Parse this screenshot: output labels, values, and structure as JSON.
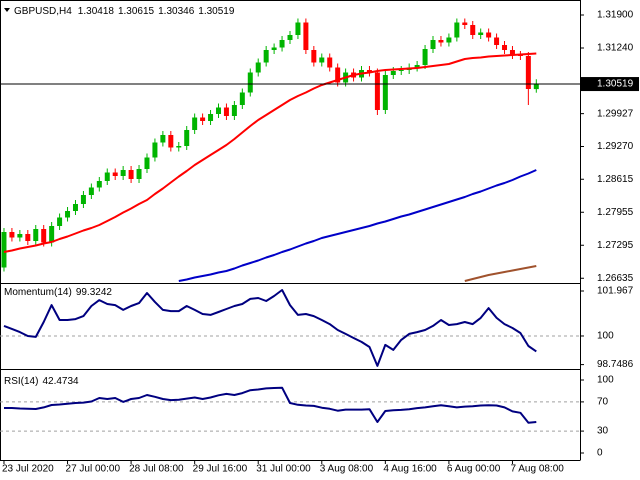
{
  "chart_data": [
    {
      "type": "candlestick",
      "title": "GBPUSD,H4",
      "open": [
        1.2685,
        1.2756,
        1.2745,
        1.2752,
        1.2738,
        1.2762,
        1.2735,
        1.2768,
        1.2785,
        1.2798,
        1.2812,
        1.283,
        1.2845,
        1.2858,
        1.2875,
        1.2868,
        1.288,
        1.2862,
        1.2882,
        1.2905,
        1.2935,
        1.295,
        1.2925,
        1.2928,
        1.296,
        1.2985,
        1.2978,
        1.2992,
        1.3005,
        1.2988,
        1.301,
        1.3035,
        1.3075,
        1.3095,
        1.312,
        1.3125,
        1.314,
        1.315,
        1.3175,
        1.312,
        1.3095,
        1.3105,
        1.3085,
        1.3055,
        1.3075,
        1.3065,
        1.308,
        1.3075,
        1.3,
        1.307,
        1.3078,
        1.308,
        1.3085,
        1.309,
        1.3122,
        1.314,
        1.3135,
        1.3145,
        1.3175,
        1.317,
        1.315,
        1.3155,
        1.3145,
        1.313,
        1.312,
        1.311,
        1.3108,
        1.30418
      ],
      "high": [
        1.2764,
        1.2764,
        1.276,
        1.276,
        1.277,
        1.277,
        1.2776,
        1.2793,
        1.2806,
        1.282,
        1.2838,
        1.2853,
        1.2866,
        1.2883,
        1.2883,
        1.2888,
        1.2888,
        1.289,
        1.2913,
        1.2943,
        1.2958,
        1.2958,
        1.2936,
        1.2968,
        1.2993,
        1.2993,
        1.3,
        1.3013,
        1.3013,
        1.3018,
        1.3043,
        1.3083,
        1.3103,
        1.3128,
        1.3133,
        1.3148,
        1.3158,
        1.3183,
        1.3183,
        1.3128,
        1.3113,
        1.3113,
        1.3093,
        1.3083,
        1.3083,
        1.3088,
        1.3088,
        1.3083,
        1.3078,
        1.3086,
        1.3088,
        1.3093,
        1.3098,
        1.313,
        1.3148,
        1.3148,
        1.3153,
        1.3183,
        1.3183,
        1.3178,
        1.3163,
        1.3163,
        1.3153,
        1.3138,
        1.3128,
        1.3118,
        1.3116,
        1.30615
      ],
      "low": [
        1.2677,
        1.2737,
        1.2737,
        1.273,
        1.273,
        1.2727,
        1.2727,
        1.276,
        1.2777,
        1.279,
        1.2804,
        1.2822,
        1.2837,
        1.285,
        1.286,
        1.286,
        1.2854,
        1.2854,
        1.2874,
        1.2897,
        1.2927,
        1.2917,
        1.2917,
        1.292,
        1.2952,
        1.297,
        1.297,
        1.2984,
        1.298,
        1.298,
        1.3002,
        1.3027,
        1.3067,
        1.3087,
        1.3112,
        1.3117,
        1.3132,
        1.3142,
        1.3112,
        1.3087,
        1.3087,
        1.3077,
        1.3047,
        1.3047,
        1.3057,
        1.3057,
        1.3067,
        1.299,
        1.2992,
        1.3062,
        1.307,
        1.3072,
        1.3077,
        1.3082,
        1.3114,
        1.3127,
        1.3127,
        1.3137,
        1.3162,
        1.3142,
        1.3142,
        1.3137,
        1.3122,
        1.3112,
        1.3102,
        1.31,
        1.301,
        1.30346
      ],
      "close": [
        1.2756,
        1.2745,
        1.2752,
        1.2738,
        1.2762,
        1.2735,
        1.2768,
        1.2785,
        1.2798,
        1.2812,
        1.283,
        1.2845,
        1.2858,
        1.2875,
        1.2868,
        1.288,
        1.2862,
        1.2882,
        1.2905,
        1.2935,
        1.295,
        1.2925,
        1.2928,
        1.296,
        1.2985,
        1.2978,
        1.2992,
        1.3005,
        1.2988,
        1.301,
        1.3035,
        1.3075,
        1.3095,
        1.312,
        1.3125,
        1.314,
        1.315,
        1.3175,
        1.312,
        1.3095,
        1.3105,
        1.3085,
        1.3055,
        1.3075,
        1.3065,
        1.308,
        1.3075,
        1.3,
        1.307,
        1.3078,
        1.308,
        1.3085,
        1.309,
        1.3122,
        1.314,
        1.3135,
        1.3145,
        1.3175,
        1.317,
        1.315,
        1.3155,
        1.3145,
        1.313,
        1.312,
        1.311,
        1.3108,
        1.3042,
        1.30519
      ],
      "up_color": "#00b400",
      "down_color": "#ff0000",
      "series": [
        {
          "color": "#ff0000",
          "values": [
            1.2716,
            1.2719,
            1.2723,
            1.2726,
            1.2729,
            1.2733,
            1.2736,
            1.2742,
            1.2747,
            1.2753,
            1.2759,
            1.2764,
            1.277,
            1.2778,
            1.2786,
            1.2795,
            1.2803,
            1.2812,
            1.282,
            1.2832,
            1.2843,
            1.2855,
            1.2867,
            1.2878,
            1.289,
            1.29,
            1.291,
            1.292,
            1.293,
            1.2942,
            1.2955,
            1.2968,
            1.298,
            1.299,
            1.3,
            1.301,
            1.302,
            1.3028,
            1.3035,
            1.3043,
            1.305,
            1.3055,
            1.306,
            1.3065,
            1.307,
            1.3073,
            1.3075,
            1.3078,
            1.308,
            1.3081,
            1.3082,
            1.3083,
            1.3084,
            1.3086,
            1.3088,
            1.309,
            1.3092,
            1.3097,
            1.3102,
            1.3104,
            1.3105,
            1.3107,
            1.3108,
            1.3109,
            1.311,
            1.3111,
            1.3112,
            1.3113
          ]
        },
        {
          "color": "#0000c8",
          "values": [
            null,
            null,
            null,
            null,
            null,
            null,
            null,
            null,
            null,
            null,
            null,
            null,
            null,
            null,
            null,
            null,
            null,
            null,
            null,
            null,
            null,
            null,
            1.2658,
            1.2661,
            1.2665,
            1.2668,
            1.2671,
            1.2675,
            1.2678,
            1.2683,
            1.2689,
            1.2694,
            1.2699,
            1.2705,
            1.271,
            1.2716,
            1.2721,
            1.2727,
            1.2733,
            1.2738,
            1.2744,
            1.2748,
            1.2752,
            1.2756,
            1.276,
            1.2764,
            1.2768,
            1.2773,
            1.2777,
            1.2782,
            1.2787,
            1.2791,
            1.2796,
            1.2801,
            1.2806,
            1.2811,
            1.2816,
            1.2821,
            1.2826,
            1.2832,
            1.2837,
            1.2843,
            1.2849,
            1.2854,
            1.286,
            1.2867,
            1.2873,
            1.288
          ]
        },
        {
          "color": "#a0522d",
          "values": [
            null,
            null,
            null,
            null,
            null,
            null,
            null,
            null,
            null,
            null,
            null,
            null,
            null,
            null,
            null,
            null,
            null,
            null,
            null,
            null,
            null,
            null,
            null,
            null,
            null,
            null,
            null,
            null,
            null,
            null,
            null,
            null,
            null,
            null,
            null,
            null,
            null,
            null,
            null,
            null,
            null,
            null,
            null,
            null,
            null,
            null,
            null,
            null,
            null,
            null,
            null,
            null,
            null,
            null,
            null,
            null,
            null,
            null,
            1.2658,
            1.2662,
            1.2666,
            1.267,
            1.2673,
            1.2676,
            1.2679,
            1.2682,
            1.2685,
            1.2688
          ]
        }
      ],
      "current_price": {
        "value": 1.30519,
        "label": "1.30519"
      },
      "ylim": [
        1.2656,
        1.322
      ],
      "yticks": [
        {
          "value": 1.319,
          "label": "1.31900"
        },
        {
          "value": 1.3124,
          "label": "1.31240"
        },
        {
          "value": 1.29927,
          "label": "1.29927"
        },
        {
          "value": 1.2927,
          "label": "1.29270"
        },
        {
          "value": 1.28615,
          "label": "1.28615"
        },
        {
          "value": 1.27955,
          "label": "1.27955"
        },
        {
          "value": 1.27295,
          "label": "1.27295"
        },
        {
          "value": 1.26635,
          "label": "1.26635"
        }
      ],
      "xlim": [
        -0.5,
        72.5
      ],
      "xticks": [
        {
          "value": 0,
          "label": "23 Jul 2020"
        },
        {
          "value": 8,
          "label": "27 Jul 00:00"
        },
        {
          "value": 16,
          "label": "28 Jul 08:00"
        },
        {
          "value": 24,
          "label": "29 Jul 16:00"
        },
        {
          "value": 32,
          "label": "31 Jul 00:00"
        },
        {
          "value": 40,
          "label": "3 Aug 08:00"
        },
        {
          "value": 48,
          "label": "4 Aug 16:00"
        },
        {
          "value": 56,
          "label": "6 Aug 00:00"
        },
        {
          "value": 64,
          "label": "7 Aug 08:00"
        }
      ]
    },
    {
      "type": "line",
      "title": "Momentum(14)",
      "color": "#000080",
      "values": [
        100.44,
        100.31,
        100.17,
        100.0,
        99.96,
        100.61,
        101.35,
        100.7,
        100.7,
        100.74,
        100.87,
        101.31,
        101.57,
        101.4,
        101.35,
        101.14,
        101.31,
        101.44,
        101.88,
        101.49,
        101.14,
        101.09,
        101.09,
        101.31,
        101.14,
        100.96,
        100.92,
        101.05,
        101.18,
        101.31,
        101.4,
        101.62,
        101.66,
        101.53,
        101.75,
        102.01,
        101.35,
        100.92,
        100.96,
        100.87,
        100.7,
        100.52,
        100.26,
        100.09,
        99.91,
        99.74,
        99.52,
        98.69,
        99.61,
        99.39,
        99.83,
        100.09,
        100.17,
        100.26,
        100.44,
        100.7,
        100.48,
        100.52,
        100.61,
        100.52,
        100.79,
        101.22,
        100.79,
        100.52,
        100.35,
        100.13,
        99.56,
        99.3242
      ],
      "levels": [
        100
      ],
      "ylim": [
        98.6,
        102.273
      ],
      "yticks": [
        101.967,
        100,
        98.7486
      ]
    },
    {
      "type": "line",
      "title": "RSI(14)",
      "color": "#000080",
      "values": [
        61.6,
        61.6,
        61.0,
        60.5,
        60.3,
        62.5,
        65.8,
        66.5,
        67.5,
        68.5,
        69.0,
        70.5,
        75.3,
        74.0,
        75.3,
        70.0,
        74.0,
        75.3,
        79.5,
        77.0,
        74.0,
        72.5,
        73.0,
        74.5,
        76.0,
        74.0,
        76.0,
        79.0,
        81.0,
        79.5,
        82.0,
        86.0,
        87.0,
        88.5,
        89.0,
        89.5,
        68.5,
        66.0,
        65.0,
        64.5,
        62.0,
        60.5,
        58.0,
        59.5,
        59.5,
        59.5,
        60.0,
        42.5,
        57.5,
        58.5,
        59.0,
        60.0,
        61.5,
        62.5,
        64.0,
        65.5,
        64.0,
        62.5,
        63.5,
        64.0,
        65.0,
        65.5,
        65.0,
        62.5,
        57.0,
        55.0,
        41.5,
        42.4734
      ],
      "levels": [
        70,
        30
      ],
      "ylim": [
        -9.6,
        113.7
      ],
      "yticks": [
        100,
        70,
        30,
        0
      ]
    }
  ]
}
